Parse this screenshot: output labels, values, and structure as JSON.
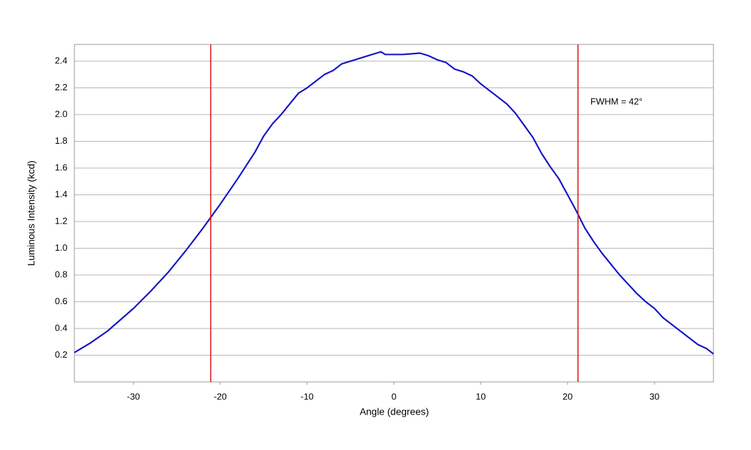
{
  "chart_data": {
    "type": "line",
    "xlabel": "Angle (degrees)",
    "ylabel": "Luminous Intensity (kcd)",
    "annotation": "FWHM = 42°",
    "x": [
      -36.8,
      -35,
      -33,
      -30,
      -28,
      -26,
      -24,
      -22,
      -21,
      -20,
      -18,
      -17,
      -16,
      -15,
      -14,
      -13,
      -12,
      -11,
      -10,
      -9,
      -8,
      -7,
      -6,
      -5,
      -4,
      -3,
      -2,
      -1.5,
      -1,
      0,
      1,
      2,
      3,
      4,
      5,
      6,
      7,
      8,
      9,
      10,
      11,
      12,
      13,
      14,
      15,
      16,
      17,
      18,
      19,
      20,
      21,
      22,
      23,
      24,
      25,
      26,
      27,
      28,
      29,
      30,
      31,
      32,
      33,
      34,
      35,
      36,
      36.8
    ],
    "series": [
      {
        "color": "#1414c8",
        "values": [
          0.22,
          0.29,
          0.38,
          0.55,
          0.68,
          0.82,
          0.98,
          1.15,
          1.24,
          1.33,
          1.52,
          1.62,
          1.72,
          1.84,
          1.93,
          2.0,
          2.08,
          2.16,
          2.2,
          2.25,
          2.3,
          2.33,
          2.38,
          2.4,
          2.42,
          2.44,
          2.46,
          2.47,
          2.45,
          2.45,
          2.45,
          2.455,
          2.46,
          2.44,
          2.41,
          2.39,
          2.34,
          2.32,
          2.29,
          2.23,
          2.18,
          2.13,
          2.08,
          2.01,
          1.92,
          1.83,
          1.71,
          1.61,
          1.52,
          1.4,
          1.28,
          1.15,
          1.05,
          0.96,
          0.88,
          0.8,
          0.73,
          0.66,
          0.6,
          0.55,
          0.48,
          0.43,
          0.38,
          0.33,
          0.28,
          0.25,
          0.21
        ]
      }
    ],
    "vlines": [
      -21.1,
      21.2
    ],
    "vline_color": "#e01010",
    "xlim": [
      -36.8,
      36.8
    ],
    "ylim": [
      0,
      2.525
    ],
    "xticks": [
      -30,
      -20,
      -10,
      0,
      10,
      20,
      30
    ],
    "yticks": [
      0.2,
      0.4,
      0.6,
      0.8,
      {
        "value": 1,
        "label": "1.0"
      },
      1.2,
      1.4,
      1.6,
      1.8,
      {
        "value": 2,
        "label": "2.0"
      },
      2.2,
      2.4
    ],
    "grid": true
  }
}
